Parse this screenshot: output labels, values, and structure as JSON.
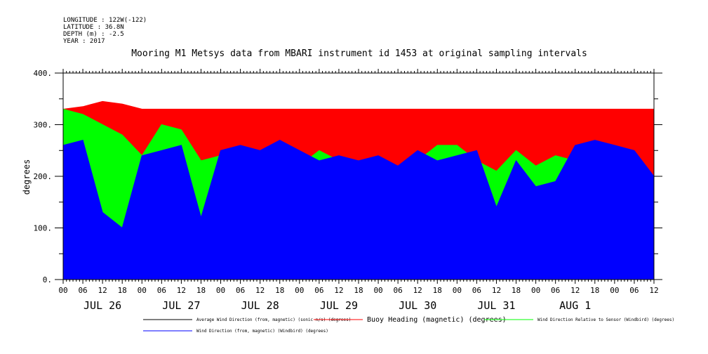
{
  "header": {
    "longitude": "LONGITUDE : 122W(-122)",
    "latitude": "LATITUDE : 36.8N",
    "depth": "DEPTH (m) : -2.5",
    "year": "YEAR : 2017"
  },
  "chart_data": {
    "type": "area",
    "title": "Mooring M1 Metsys data from MBARI instrument id 1453 at original sampling intervals",
    "ylabel": "degrees",
    "xlabel": "",
    "ylim": [
      0,
      400
    ],
    "yticks": [
      "0.",
      "100.",
      "200.",
      "300.",
      "400."
    ],
    "x_hour_labels": [
      "00",
      "06",
      "12",
      "18",
      "00",
      "06",
      "12",
      "18",
      "00",
      "06",
      "12",
      "18",
      "00",
      "06",
      "12",
      "18",
      "00",
      "06",
      "12",
      "18",
      "00",
      "06",
      "12",
      "18",
      "00",
      "06",
      "12",
      "18",
      "00",
      "06",
      "12"
    ],
    "day_labels": [
      "JUL 26",
      "JUL 27",
      "JUL 28",
      "JUL 29",
      "JUL 30",
      "JUL 31",
      "AUG  1"
    ],
    "grid": false,
    "legend_position": "bottom",
    "colors": {
      "average_wind": "#000000",
      "buoy_heading": "#ff0000",
      "wind_relative": "#00ff00",
      "wind_direction": "#0000ff"
    },
    "series": [
      {
        "name": "Average Wind Direction (from, magnetic) (sonic-n/s) (degrees)",
        "color": "#000000",
        "x_hours": [],
        "values": []
      },
      {
        "name": "Buoy Heading (magnetic) (degrees)",
        "color": "#ff0000",
        "x_hours": [
          0,
          6,
          12,
          18,
          24,
          30,
          36,
          42,
          48,
          54,
          60,
          66,
          72,
          78,
          84,
          90,
          96,
          102,
          108,
          114,
          120,
          126,
          132,
          138,
          144,
          150,
          156,
          162,
          168,
          174,
          180
        ],
        "values": [
          330,
          335,
          345,
          340,
          330,
          330,
          330,
          330,
          330,
          330,
          330,
          330,
          330,
          330,
          330,
          330,
          330,
          330,
          330,
          330,
          330,
          330,
          330,
          330,
          330,
          330,
          330,
          330,
          330,
          330,
          330
        ]
      },
      {
        "name": "Wind Direction Relative to Sensor (Windbird) (degrees)",
        "color": "#00ff00",
        "x_hours": [
          0,
          6,
          12,
          18,
          24,
          30,
          36,
          42,
          48,
          54,
          60,
          66,
          72,
          78,
          84,
          90,
          96,
          102,
          108,
          114,
          120,
          126,
          132,
          138,
          144,
          150,
          156,
          162,
          168,
          174,
          180
        ],
        "values": [
          330,
          320,
          300,
          280,
          240,
          300,
          290,
          230,
          240,
          260,
          200,
          230,
          220,
          250,
          230,
          230,
          230,
          220,
          230,
          260,
          260,
          230,
          210,
          250,
          220,
          240,
          230,
          180,
          210,
          220,
          190
        ]
      },
      {
        "name": "Wind Direction (from, magnetic) (Windbird) (degrees)",
        "color": "#0000ff",
        "x_hours": [
          0,
          6,
          12,
          18,
          24,
          30,
          36,
          42,
          48,
          54,
          60,
          66,
          72,
          78,
          84,
          90,
          96,
          102,
          108,
          114,
          120,
          126,
          132,
          138,
          144,
          150,
          156,
          162,
          168,
          174,
          180
        ],
        "values": [
          260,
          270,
          130,
          100,
          240,
          250,
          260,
          120,
          250,
          260,
          250,
          270,
          250,
          230,
          240,
          230,
          240,
          220,
          250,
          230,
          240,
          250,
          140,
          230,
          180,
          190,
          260,
          270,
          260,
          250,
          200
        ]
      }
    ]
  }
}
